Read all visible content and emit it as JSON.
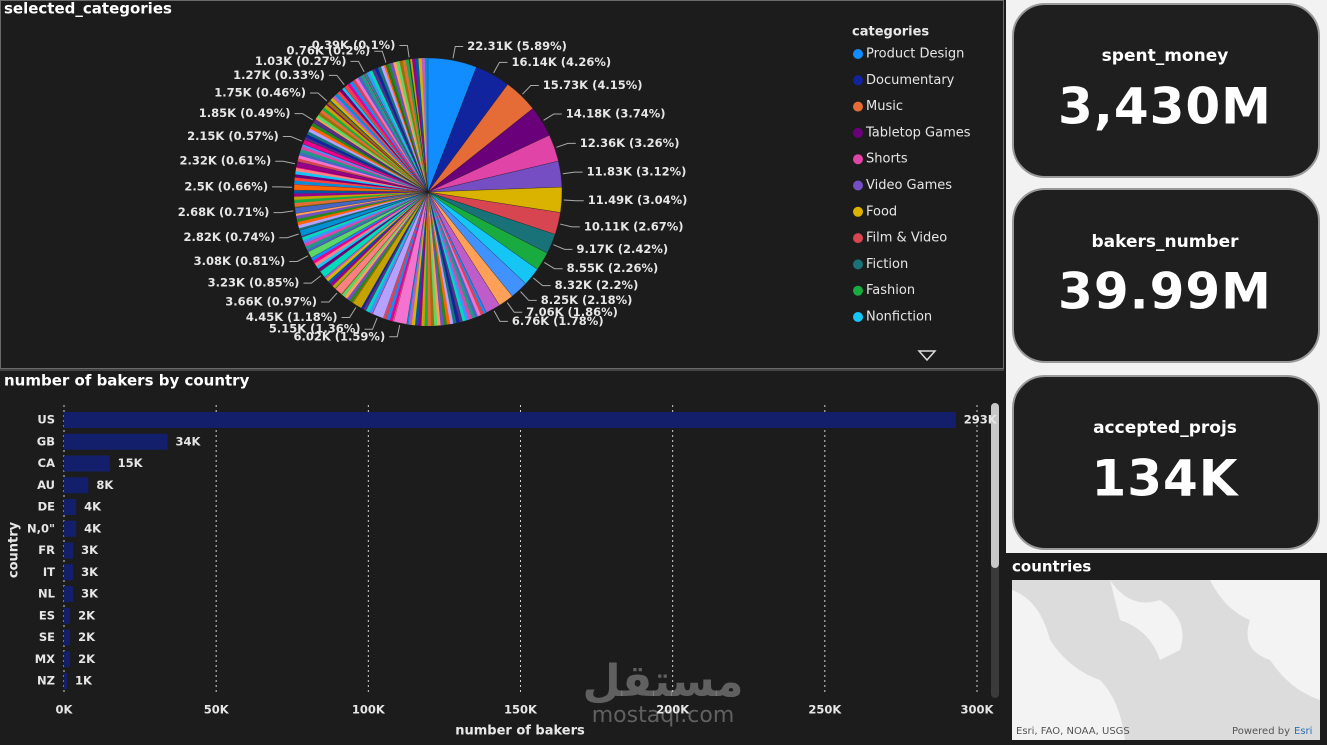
{
  "chart_data": [
    {
      "type": "pie",
      "title": "selected_categories",
      "legend_title": "categories",
      "categories": [
        "Product Design",
        "Documentary",
        "Music",
        "Tabletop Games",
        "Shorts",
        "Video Games",
        "Food",
        "Film & Video",
        "Fiction",
        "Fashion",
        "Nonfiction",
        null,
        null,
        null,
        null,
        null,
        null,
        null,
        null,
        null,
        null,
        null,
        null,
        null,
        null,
        null,
        null,
        null,
        null,
        null,
        null
      ],
      "values": [
        22310,
        16140,
        15730,
        14180,
        12360,
        11830,
        11490,
        10110,
        9170,
        8550,
        8320,
        8250,
        7060,
        6760,
        6020,
        5150,
        4450,
        3660,
        3230,
        3080,
        2820,
        2680,
        2500,
        2320,
        2150,
        1850,
        1750,
        1270,
        1030,
        760,
        390
      ],
      "value_labels": [
        "22.31K (5.89%)",
        "16.14K (4.26%)",
        "15.73K (4.15%)",
        "14.18K (3.74%)",
        "12.36K (3.26%)",
        "11.83K (3.12%)",
        "11.49K (3.04%)",
        "10.11K (2.67%)",
        "9.17K (2.42%)",
        "8.55K (2.26%)",
        "8.32K (2.2%)",
        "8.25K (2.18%)",
        "7.06K (1.86%)",
        "6.76K (1.78%)",
        "6.02K (1.59%)",
        "5.15K (1.36%)",
        "4.45K (1.18%)",
        "3.66K (0.97%)",
        "3.23K (0.85%)",
        "3.08K (0.81%)",
        "2.82K (0.74%)",
        "2.68K (0.71%)",
        "2.5K (0.66%)",
        "2.32K (0.61%)",
        "2.15K (0.57%)",
        "1.85K (0.49%)",
        "1.75K (0.46%)",
        "1.27K (0.33%)",
        "1.03K (0.27%)",
        "0.76K (0.2%)",
        "0.39K (0.1%)"
      ],
      "colors": [
        "#118DFF",
        "#12239E",
        "#E66C37",
        "#6B007B",
        "#E044A7",
        "#744EC2",
        "#D9B300",
        "#D64550",
        "#197278",
        "#1AAB40",
        "#15C6F4",
        "#4092FF",
        "#FFA058",
        "#BE5DC9",
        "#F472D0",
        "#B5A1FF",
        "#C4A200",
        "#FF8080",
        "#00DBBC",
        "#5BD667",
        "#0091D5",
        "#4668C5",
        "#FF6300",
        "#99008A",
        "#EC008C",
        "#533285",
        "#99700A",
        "#FF4141",
        "#1F9A85",
        "#25891C",
        "#0057A2"
      ],
      "legend_position": "right"
    },
    {
      "type": "bar",
      "orientation": "horizontal",
      "title": "number of bakers by country",
      "x_label": "number of bakers",
      "y_label": "country",
      "categories": [
        "US",
        "GB",
        "CA",
        "AU",
        "DE",
        "N,0\"",
        "FR",
        "IT",
        "NL",
        "ES",
        "SE",
        "MX",
        "NZ"
      ],
      "values": [
        293000,
        34000,
        15000,
        8000,
        4000,
        4000,
        3000,
        3000,
        3000,
        2000,
        2000,
        2000,
        1000
      ],
      "value_labels": [
        "293K",
        "34K",
        "15K",
        "8K",
        "4K",
        "4K",
        "3K",
        "3K",
        "3K",
        "2K",
        "2K",
        "2K",
        "1K"
      ],
      "color": "#141f6b",
      "xlim": [
        0,
        300000
      ],
      "xticks": [
        {
          "value": 0,
          "label": "0K"
        },
        {
          "value": 50000,
          "label": "50K"
        },
        {
          "value": 100000,
          "label": "100K"
        },
        {
          "value": 150000,
          "label": "150K"
        },
        {
          "value": 200000,
          "label": "200K"
        },
        {
          "value": 250000,
          "label": "250K"
        },
        {
          "value": 300000,
          "label": "300K"
        }
      ],
      "grid": true
    }
  ],
  "cards": [
    {
      "title": "spent_money",
      "value": "3,430M"
    },
    {
      "title": "bakers_number",
      "value": "39.99M"
    },
    {
      "title": "accepted_projs",
      "value": "134K"
    }
  ],
  "map": {
    "title": "countries",
    "attribution": "Esri, FAO, NOAA, USGS",
    "powered_by": "Powered by",
    "powered_by_link": "Esri"
  },
  "watermark": {
    "arabic": "مستقل",
    "latin": "mostaql.com"
  }
}
